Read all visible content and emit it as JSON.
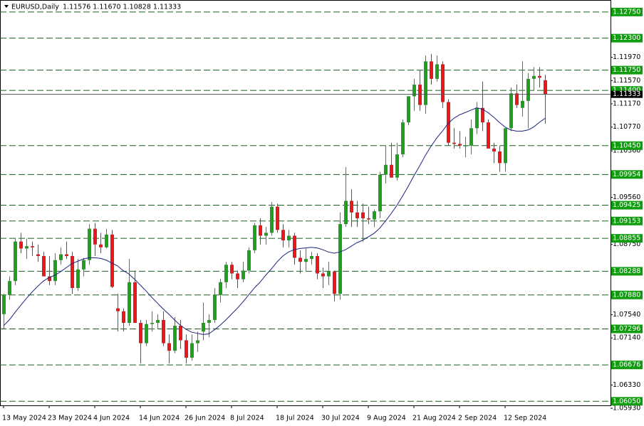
{
  "chart_data": {
    "type": "candlestick",
    "title": "EURUSD,Daily",
    "info": "1.11576 1.11670 1.10828 1.11333",
    "categories": [
      "13 May 2024",
      null,
      null,
      null,
      null,
      null,
      null,
      null,
      "23 May 2024",
      null,
      null,
      null,
      null,
      null,
      null,
      null,
      "4 Jun 2024",
      null,
      null,
      null,
      null,
      null,
      null,
      null,
      "14 Jun 2024",
      null,
      null,
      null,
      null,
      null,
      null,
      null,
      "26 Jun 2024",
      null,
      null,
      null,
      null,
      null,
      null,
      null,
      "8 Jul 2024",
      null,
      null,
      null,
      null,
      null,
      null,
      null,
      "18 Jul 2024",
      null,
      null,
      null,
      null,
      null,
      null,
      null,
      "30 Jul 2024",
      null,
      null,
      null,
      null,
      null,
      null,
      null,
      "9 Aug 2024",
      null,
      null,
      null,
      null,
      null,
      null,
      null,
      "21 Aug 2024",
      null,
      null,
      null,
      null,
      null,
      null,
      null,
      "2 Sep 2024",
      null,
      null,
      null,
      null,
      null,
      null,
      null,
      "12 Sep 2024",
      null,
      null,
      null,
      null,
      null,
      null,
      null
    ],
    "open": [
      1.0755,
      1.0788,
      1.0812,
      1.088,
      1.0868,
      1.0872,
      1.0858,
      1.0855,
      1.082,
      1.0812,
      1.0848,
      1.0858,
      1.0855,
      1.08,
      1.0832,
      1.0848,
      1.0902,
      1.0875,
      1.087,
      1.0892,
      1.0765,
      1.076,
      1.074,
      1.081,
      1.074,
      1.0705,
      1.0738,
      1.074,
      1.0745,
      1.0705,
      1.0692,
      1.0735,
      1.071,
      1.068,
      1.0705,
      1.0725,
      1.074,
      1.0745,
      1.0788,
      1.081,
      1.084,
      1.0825,
      1.0815,
      1.083,
      1.0865,
      1.0908,
      1.089,
      1.0895,
      1.094,
      1.09,
      1.0882,
      1.089,
      1.0852,
      1.0845,
      1.085,
      1.0855,
      1.0825,
      1.082,
      1.0828,
      1.079,
      1.091,
      1.095,
      1.093,
      1.093,
      1.092,
      1.0918,
      1.0932,
      1.0995,
      1.1012,
      1.099,
      1.103,
      1.1085,
      1.113,
      1.115,
      1.1115,
      1.119,
      1.116,
      1.1185,
      1.112,
      1.105,
      1.1048,
      1.1045,
      1.1045,
      1.1075,
      1.111,
      1.1085,
      1.104,
      1.1035,
      1.1015,
      1.1075,
      1.1135,
      1.111,
      1.1122,
      1.116,
      1.1165,
      1.11576
    ],
    "high": [
      1.079,
      1.082,
      1.0885,
      1.0895,
      1.0885,
      1.088,
      1.0875,
      1.0862,
      1.0855,
      1.086,
      1.087,
      1.088,
      1.0862,
      1.085,
      1.0852,
      1.091,
      1.0912,
      1.0895,
      1.0902,
      1.09,
      1.079,
      1.0765,
      1.085,
      1.083,
      1.0745,
      1.0745,
      1.076,
      1.0755,
      1.076,
      1.072,
      1.075,
      1.0745,
      1.072,
      1.072,
      1.0725,
      1.0775,
      1.0755,
      1.08,
      1.0816,
      1.0845,
      1.0845,
      1.083,
      1.0845,
      1.087,
      1.0912,
      1.092,
      1.0905,
      1.0948,
      1.0945,
      1.091,
      1.09,
      1.0895,
      1.0865,
      1.0868,
      1.0862,
      1.086,
      1.0835,
      1.0845,
      1.083,
      1.093,
      1.1008,
      1.097,
      1.095,
      1.0945,
      1.094,
      1.0935,
      1.1,
      1.1045,
      1.105,
      1.105,
      1.109,
      1.113,
      1.116,
      1.1175,
      1.12,
      1.1203,
      1.12,
      1.119,
      1.1125,
      1.1075,
      1.107,
      1.106,
      1.109,
      1.112,
      1.1155,
      1.109,
      1.105,
      1.1045,
      1.1075,
      1.1145,
      1.115,
      1.119,
      1.117,
      1.118,
      1.118,
      1.1167
    ],
    "low": [
      1.073,
      1.078,
      1.0805,
      1.086,
      1.085,
      1.0855,
      1.0845,
      1.0822,
      1.0805,
      1.0805,
      1.084,
      1.085,
      1.079,
      1.0795,
      1.082,
      1.084,
      1.0855,
      1.086,
      1.0868,
      1.08,
      1.0725,
      1.0725,
      1.0735,
      1.0745,
      1.067,
      1.07,
      1.0725,
      1.073,
      1.07,
      1.067,
      1.0688,
      1.0695,
      1.067,
      1.0675,
      1.069,
      1.071,
      1.0715,
      1.074,
      1.0775,
      1.08,
      1.0815,
      1.08,
      1.081,
      1.0825,
      1.086,
      1.0875,
      1.0875,
      1.089,
      1.0895,
      1.087,
      1.087,
      1.084,
      1.0825,
      1.083,
      1.084,
      1.0815,
      1.08,
      1.0805,
      1.0777,
      1.078,
      1.0905,
      1.0905,
      1.0905,
      1.088,
      1.091,
      1.0905,
      1.092,
      1.098,
      1.099,
      1.0985,
      1.1025,
      1.108,
      1.1105,
      1.1105,
      1.11,
      1.115,
      1.1155,
      1.111,
      1.1045,
      1.104,
      1.104,
      1.1025,
      1.103,
      1.1065,
      1.107,
      1.1045,
      1.1015,
      1.1,
      1.1,
      1.107,
      1.111,
      1.1095,
      1.1075,
      1.114,
      1.1145,
      1.10828
    ],
    "close": [
      1.0788,
      1.0812,
      1.088,
      1.0868,
      1.0872,
      1.087,
      1.0855,
      1.082,
      1.0812,
      1.0848,
      1.0858,
      1.0855,
      1.08,
      1.0832,
      1.0848,
      1.0902,
      1.0875,
      1.087,
      1.0892,
      1.0802,
      1.076,
      1.074,
      1.081,
      1.074,
      1.0705,
      1.0738,
      1.074,
      1.0745,
      1.0705,
      1.0692,
      1.0735,
      1.071,
      1.068,
      1.0705,
      1.071,
      1.074,
      1.0745,
      1.0788,
      1.081,
      1.084,
      1.0825,
      1.0815,
      1.083,
      1.0865,
      1.0908,
      1.089,
      1.0895,
      1.094,
      1.09,
      1.0882,
      1.089,
      1.0852,
      1.0845,
      1.085,
      1.0855,
      1.0825,
      1.082,
      1.0828,
      1.079,
      1.091,
      1.095,
      1.093,
      1.092,
      1.092,
      1.0918,
      1.0932,
      1.0995,
      1.1012,
      1.099,
      1.103,
      1.1085,
      1.113,
      1.115,
      1.1115,
      1.119,
      1.116,
      1.1185,
      1.112,
      1.105,
      1.1048,
      1.1045,
      1.1045,
      1.1075,
      1.111,
      1.1085,
      1.104,
      1.1035,
      1.1015,
      1.1075,
      1.1135,
      1.1115,
      1.1122,
      1.116,
      1.1165,
      1.1162,
      1.11333
    ],
    "ma": [
      1.0735,
      1.0745,
      1.0758,
      1.077,
      1.0782,
      1.0793,
      1.0803,
      1.0812,
      1.0818,
      1.0822,
      1.0828,
      1.0835,
      1.0842,
      1.0846,
      1.085,
      1.0852,
      1.0852,
      1.0851,
      1.0848,
      1.0843,
      1.0838,
      1.083,
      1.0824,
      1.0815,
      1.0805,
      1.0795,
      1.0784,
      1.0774,
      1.0764,
      1.0755,
      1.0745,
      1.0736,
      1.0729,
      1.0724,
      1.0722,
      1.072,
      1.0721,
      1.0728,
      1.0736,
      1.0745,
      1.0755,
      1.0765,
      1.0776,
      1.0788,
      1.08,
      1.081,
      1.0822,
      1.0833,
      1.0845,
      1.0855,
      1.0862,
      1.0866,
      1.0868,
      1.0869,
      1.087,
      1.0869,
      1.0866,
      1.0862,
      1.086,
      1.0862,
      1.0866,
      1.0872,
      1.0878,
      1.0882,
      1.0888,
      1.0894,
      1.0903,
      1.0915,
      1.0928,
      1.0942,
      1.0958,
      1.0975,
      1.0993,
      1.101,
      1.1028,
      1.1044,
      1.1058,
      1.107,
      1.1083,
      1.1092,
      1.1098,
      1.1102,
      1.1106,
      1.111,
      1.1108,
      1.1102,
      1.1094,
      1.1085,
      1.1077,
      1.1072,
      1.107,
      1.107,
      1.1072,
      1.1077,
      1.1085,
      1.1092
    ],
    "up_color": "#1f9e1f",
    "down_color": "#e3191c",
    "ma_color": "#1a237e",
    "level_color": "#1b5e20",
    "ylim": [
      1.0598,
      1.1292
    ],
    "yticks": [
      {
        "value": 1.1197,
        "label": "1.11970"
      },
      {
        "value": 1.1157,
        "label": "1.11570"
      },
      {
        "value": 1.1117,
        "label": "1.11170"
      },
      {
        "value": 1.1077,
        "label": "1.10770"
      },
      {
        "value": 1.1036,
        "label": "1.10360"
      },
      {
        "value": 1.0956,
        "label": "1.09560"
      },
      {
        "value": 1.0875,
        "label": "1.08750"
      },
      {
        "value": 1.0754,
        "label": "1.07540"
      },
      {
        "value": 1.0714,
        "label": "1.07140"
      },
      {
        "value": 1.0633,
        "label": "1.06330"
      },
      {
        "value": 1.0593,
        "label": "1.05930"
      }
    ],
    "levels": [
      {
        "value": 1.1275,
        "label": "1.12750"
      },
      {
        "value": 1.123,
        "label": "1.12300"
      },
      {
        "value": 1.1175,
        "label": "1.11750"
      },
      {
        "value": 1.114,
        "label": "1.11400"
      },
      {
        "value": 1.1045,
        "label": "1.10450"
      },
      1.09954,
      1.09425,
      1.09153,
      1.08855,
      1.08288,
      {
        "value": 1.0788,
        "label": "1.07880"
      },
      1.07296,
      1.06676,
      {
        "value": 1.0605,
        "label": "1.06050"
      }
    ],
    "last_price": 1.11333
  }
}
